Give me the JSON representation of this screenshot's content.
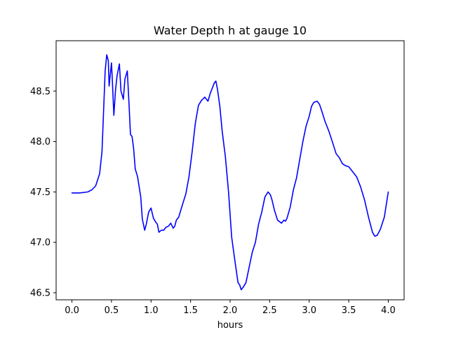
{
  "chart_data": {
    "type": "line",
    "title": "Water Depth h at gauge 10",
    "xlabel": "hours",
    "ylabel": "",
    "xlim": [
      -0.2,
      4.2
    ],
    "ylim": [
      46.43,
      49.0
    ],
    "x_ticks": [
      0.0,
      0.5,
      1.0,
      1.5,
      2.0,
      2.5,
      3.0,
      3.5,
      4.0
    ],
    "x_tick_labels": [
      "0.0",
      "0.5",
      "1.0",
      "1.5",
      "2.0",
      "2.5",
      "3.0",
      "3.5",
      "4.0"
    ],
    "y_ticks": [
      46.5,
      47.0,
      47.5,
      48.0,
      48.5
    ],
    "y_tick_labels": [
      "46.5",
      "47.0",
      "47.5",
      "48.0",
      "48.5"
    ],
    "grid": false,
    "series": [
      {
        "color": "#0000ff",
        "x": [
          0.0,
          0.1,
          0.2,
          0.25,
          0.3,
          0.35,
          0.38,
          0.4,
          0.42,
          0.44,
          0.46,
          0.47,
          0.5,
          0.51,
          0.53,
          0.55,
          0.57,
          0.6,
          0.62,
          0.65,
          0.67,
          0.7,
          0.72,
          0.74,
          0.76,
          0.78,
          0.8,
          0.83,
          0.87,
          0.89,
          0.92,
          0.94,
          0.97,
          1.0,
          1.03,
          1.06,
          1.08,
          1.1,
          1.13,
          1.16,
          1.19,
          1.22,
          1.25,
          1.28,
          1.3,
          1.32,
          1.35,
          1.4,
          1.44,
          1.48,
          1.52,
          1.56,
          1.6,
          1.64,
          1.68,
          1.72,
          1.75,
          1.8,
          1.82,
          1.84,
          1.87,
          1.9,
          1.94,
          1.98,
          2.02,
          2.06,
          2.1,
          2.12,
          2.14,
          2.17,
          2.2,
          2.24,
          2.28,
          2.32,
          2.36,
          2.4,
          2.44,
          2.48,
          2.51,
          2.53,
          2.56,
          2.6,
          2.65,
          2.68,
          2.7,
          2.72,
          2.76,
          2.8,
          2.84,
          2.88,
          2.92,
          2.96,
          3.0,
          3.03,
          3.06,
          3.1,
          3.13,
          3.16,
          3.2,
          3.25,
          3.3,
          3.34,
          3.38,
          3.42,
          3.46,
          3.5,
          3.55,
          3.6,
          3.65,
          3.7,
          3.75,
          3.8,
          3.83,
          3.86,
          3.9,
          3.95,
          4.0
        ],
        "y": [
          47.49,
          47.49,
          47.5,
          47.52,
          47.56,
          47.68,
          47.9,
          48.3,
          48.7,
          48.86,
          48.8,
          48.55,
          48.78,
          48.62,
          48.26,
          48.5,
          48.65,
          48.77,
          48.5,
          48.42,
          48.62,
          48.7,
          48.4,
          48.07,
          48.05,
          47.93,
          47.73,
          47.65,
          47.45,
          47.23,
          47.12,
          47.18,
          47.3,
          47.34,
          47.24,
          47.2,
          47.18,
          47.1,
          47.12,
          47.12,
          47.15,
          47.16,
          47.19,
          47.14,
          47.16,
          47.22,
          47.25,
          47.38,
          47.48,
          47.65,
          47.9,
          48.18,
          48.36,
          48.41,
          48.44,
          48.4,
          48.48,
          48.58,
          48.6,
          48.52,
          48.35,
          48.1,
          47.85,
          47.5,
          47.05,
          46.82,
          46.6,
          46.58,
          46.53,
          46.56,
          46.6,
          46.75,
          46.9,
          47.0,
          47.18,
          47.3,
          47.45,
          47.5,
          47.47,
          47.42,
          47.32,
          47.22,
          47.19,
          47.22,
          47.21,
          47.24,
          47.35,
          47.52,
          47.64,
          47.82,
          48.0,
          48.15,
          48.25,
          48.35,
          48.39,
          48.4,
          48.37,
          48.3,
          48.2,
          48.1,
          47.98,
          47.88,
          47.84,
          47.78,
          47.76,
          47.75,
          47.7,
          47.65,
          47.55,
          47.42,
          47.25,
          47.1,
          47.06,
          47.07,
          47.13,
          47.25,
          47.5
        ]
      }
    ]
  }
}
